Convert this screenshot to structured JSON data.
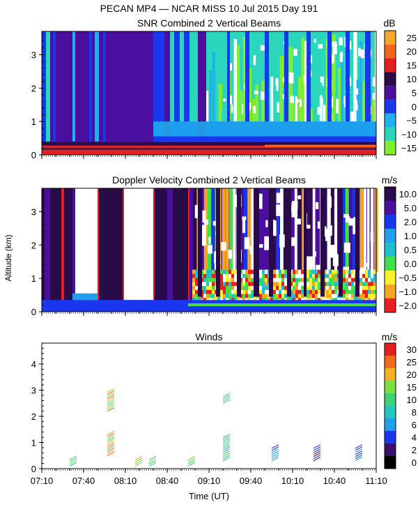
{
  "header": {
    "title": "PECAN MP4 — NCAR MISS  10 Jul 2015 Day 191"
  },
  "axes": {
    "ylabel": "Altitude (km)",
    "xlabel": "Time (UT)",
    "xticks": [
      "07:10",
      "07:40",
      "08:10",
      "08:40",
      "09:10",
      "09:40",
      "10:10",
      "10:40",
      "11:10"
    ],
    "x_range_minutes": [
      0,
      240
    ]
  },
  "colors": {
    "background": "#ffffff",
    "snr_ramp": [
      "#7fee2e",
      "#2bd7bc",
      "#1fb0ef",
      "#1a37f0",
      "#4a0f9e",
      "#2a0b4a",
      "#e31f1f",
      "#f2681e",
      "#f6a72a",
      "#f7dd4a"
    ],
    "vel_ramp": [
      "#e91f1f",
      "#f5a51f",
      "#f7f02a",
      "#43e04a",
      "#1fbfd0",
      "#1fa0f0",
      "#1a37f0",
      "#4a0f9e",
      "#2a0b4a"
    ],
    "wind_ramp": [
      "#000000",
      "#3a0f6e",
      "#1a37f0",
      "#1fa0e8",
      "#22c8c0",
      "#3fd07a",
      "#7be040",
      "#f5b025",
      "#f26a1e",
      "#e31f1f"
    ]
  },
  "chart_data": [
    {
      "type": "heatmap",
      "title": "SNR Combined 2 Vertical Beams",
      "units": "dB",
      "ylim": [
        0,
        3.7
      ],
      "yticks": [
        "0",
        "1",
        "2",
        "3"
      ],
      "colorbar_labels": [
        "25",
        "20",
        "15",
        "10",
        "5",
        "0",
        "−5",
        "−10",
        "−15"
      ],
      "colorbar_values": [
        25,
        20,
        15,
        10,
        5,
        0,
        -5,
        -10,
        -15
      ],
      "regions": [
        {
          "t0": 0,
          "t1": 80,
          "h0": 0.35,
          "h1": 3.7,
          "value": 5
        },
        {
          "t0": 0,
          "t1": 240,
          "h0": 0.15,
          "h1": 0.35,
          "value": 10
        },
        {
          "t0": 0,
          "t1": 240,
          "h0": 0.0,
          "h1": 0.15,
          "value": 15
        },
        {
          "t0": 80,
          "t1": 240,
          "h0": 0.35,
          "h1": 1.0,
          "value": 0
        },
        {
          "t0": 80,
          "t1": 240,
          "h0": 1.0,
          "h1": 3.7,
          "value": -10
        }
      ]
    },
    {
      "type": "heatmap",
      "title": "Doppler Velocity Combined 2 Vertical Beams",
      "units": "m/s",
      "ylim": [
        0,
        3.7
      ],
      "yticks": [
        "0",
        "1",
        "2",
        "3"
      ],
      "colorbar_labels": [
        "10.0",
        "5.0",
        "2.0",
        "1.0",
        "0.5",
        "0.0",
        "−0.5",
        "−1.0",
        "−2.0"
      ],
      "colorbar_values": [
        10.0,
        5.0,
        2.0,
        1.0,
        0.5,
        0.0,
        -0.5,
        -1.0,
        -2.0
      ],
      "regions": [
        {
          "t0": 0,
          "t1": 240,
          "h0": 0.3,
          "h1": 3.7,
          "value": 5.0
        },
        {
          "t0": 0,
          "t1": 240,
          "h0": 0.0,
          "h1": 0.3,
          "value": 2.0
        },
        {
          "t0": 120,
          "t1": 240,
          "h0": 0.3,
          "h1": 1.2,
          "value": 0.0
        }
      ]
    },
    {
      "type": "scatter",
      "title": "Winds",
      "units": "m/s",
      "ylim": [
        0,
        4.8
      ],
      "yticks": [
        "0",
        "1",
        "2",
        "3",
        "4"
      ],
      "colorbar_labels": [
        "30",
        "25",
        "20",
        "15",
        "10",
        "8",
        "6",
        "4",
        "2",
        "0"
      ],
      "colorbar_values": [
        30,
        25,
        20,
        15,
        10,
        8,
        6,
        4,
        2,
        0
      ],
      "barb_columns": [
        {
          "t": 20,
          "h": [
            0.1,
            0.4
          ],
          "speed": 16
        },
        {
          "t": 47,
          "h": [
            0.5,
            1.3,
            2.2,
            3.0
          ],
          "speed": 24
        },
        {
          "t": 67,
          "h": [
            0.1,
            0.4
          ],
          "speed": 20
        },
        {
          "t": 77,
          "h": [
            0.1,
            0.4
          ],
          "speed": 18
        },
        {
          "t": 105,
          "h": [
            0.1,
            0.4
          ],
          "speed": 14
        },
        {
          "t": 130,
          "h": [
            0.3,
            1.2,
            2.5
          ],
          "speed": 12
        },
        {
          "t": 165,
          "h": [
            0.3,
            0.8
          ],
          "speed": 6
        },
        {
          "t": 195,
          "h": [
            0.3,
            0.8
          ],
          "speed": 5
        },
        {
          "t": 225,
          "h": [
            0.3,
            0.8
          ],
          "speed": 6
        }
      ]
    }
  ]
}
